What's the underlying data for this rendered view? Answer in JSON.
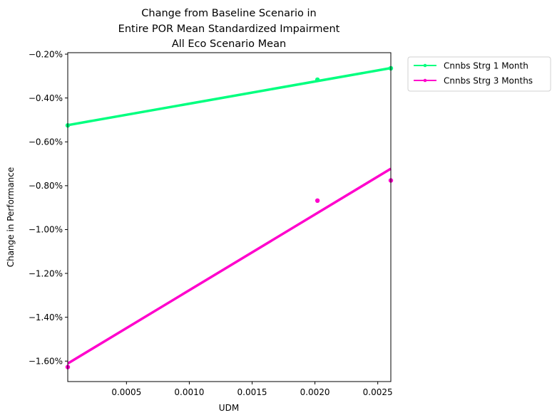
{
  "chart_data": {
    "type": "scatter",
    "title": [
      "Change from Baseline Scenario in",
      "Entire POR Mean Standardized Impairment",
      "All Eco Scenario Mean"
    ],
    "xlabel": "UDM",
    "ylabel": "Change in Performance",
    "xlim": [
      3.27e-05,
      0.002604
    ],
    "ylim": [
      -1.6933,
      -0.1933
    ],
    "x_ticks": [
      0.0005,
      0.001,
      0.0015,
      0.002,
      0.0025
    ],
    "x_tick_labels": [
      "0.0005",
      "0.0010",
      "0.0015",
      "0.0020",
      "0.0025"
    ],
    "y_ticks": [
      -0.2,
      -0.4,
      -0.6,
      -0.8,
      -1.0,
      -1.2,
      -1.4,
      -1.6
    ],
    "y_tick_labels": [
      "−0.20%",
      "−0.40%",
      "−0.60%",
      "−0.80%",
      "−1.00%",
      "−1.20%",
      "−1.40%",
      "−1.60%"
    ],
    "grid": false,
    "legend_position": "outside-top-right",
    "series": [
      {
        "name": "Cnnbs Strg 1 Month",
        "color": "#00ff7f",
        "points": [
          {
            "x": 3.27e-05,
            "y": -0.525
          },
          {
            "x": 0.00202,
            "y": -0.3165
          },
          {
            "x": 0.002604,
            "y": -0.2645
          }
        ],
        "fit_line": {
          "x": [
            3.27e-05,
            0.002604
          ],
          "y": [
            -0.5238,
            -0.2636
          ]
        }
      },
      {
        "name": "Cnnbs Strg 3 Months",
        "color": "#ff00cc",
        "points": [
          {
            "x": 3.27e-05,
            "y": -1.627
          },
          {
            "x": 0.00202,
            "y": -0.868
          },
          {
            "x": 0.002604,
            "y": -0.776
          }
        ],
        "fit_line": {
          "x": [
            3.27e-05,
            0.002604
          ],
          "y": [
            -1.611,
            -0.7225
          ]
        }
      }
    ]
  }
}
